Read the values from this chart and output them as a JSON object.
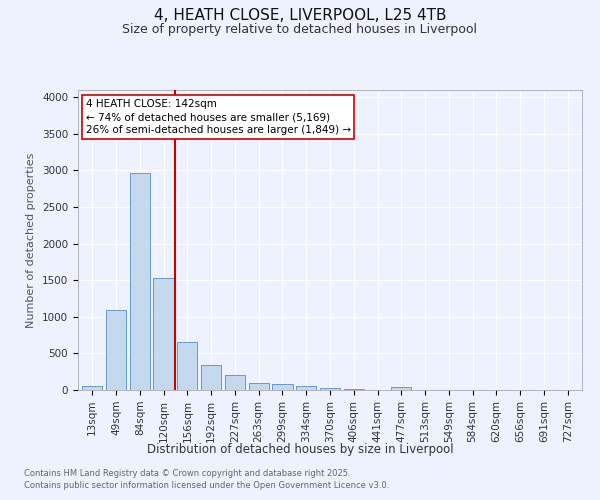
{
  "title": "4, HEATH CLOSE, LIVERPOOL, L25 4TB",
  "subtitle": "Size of property relative to detached houses in Liverpool",
  "xlabel": "Distribution of detached houses by size in Liverpool",
  "ylabel": "Number of detached properties",
  "footnote1": "Contains HM Land Registry data © Crown copyright and database right 2025.",
  "footnote2": "Contains public sector information licensed under the Open Government Licence v3.0.",
  "categories": [
    "13sqm",
    "49sqm",
    "84sqm",
    "120sqm",
    "156sqm",
    "192sqm",
    "227sqm",
    "263sqm",
    "299sqm",
    "334sqm",
    "370sqm",
    "406sqm",
    "441sqm",
    "477sqm",
    "513sqm",
    "549sqm",
    "584sqm",
    "620sqm",
    "656sqm",
    "691sqm",
    "727sqm"
  ],
  "values": [
    55,
    1100,
    2960,
    1530,
    650,
    340,
    210,
    100,
    80,
    55,
    30,
    10,
    5,
    35,
    0,
    0,
    0,
    0,
    0,
    0,
    0
  ],
  "bar_color": "#c5d9ee",
  "bar_edge_color": "#6699cc",
  "vline_color": "#cc0000",
  "annotation_text": "4 HEATH CLOSE: 142sqm\n← 74% of detached houses are smaller (5,169)\n26% of semi-detached houses are larger (1,849) →",
  "annotation_box_color": "white",
  "annotation_box_edge": "#cc0000",
  "ylim": [
    0,
    4100
  ],
  "yticks": [
    0,
    500,
    1000,
    1500,
    2000,
    2500,
    3000,
    3500,
    4000
  ],
  "background_color": "#eef2ff",
  "grid_color": "white",
  "title_fontsize": 11,
  "subtitle_fontsize": 9,
  "ylabel_fontsize": 8,
  "xlabel_fontsize": 8.5,
  "tick_fontsize": 7.5,
  "footnote_fontsize": 6
}
